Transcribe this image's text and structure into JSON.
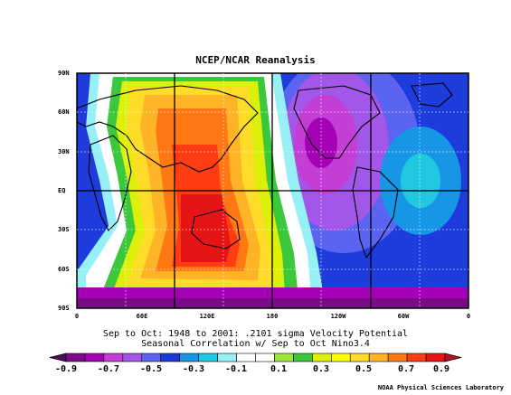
{
  "title": "NCEP/NCAR Reanalysis",
  "y_ticks": [
    "90N",
    "60N",
    "30N",
    "EQ",
    "30S",
    "60S",
    "90S"
  ],
  "x_ticks": [
    "0",
    "60E",
    "120E",
    "180",
    "120W",
    "60W",
    "0"
  ],
  "caption_line1": "Sep to Oct: 1948 to 2001: .2101 sigma Velocity Potential",
  "caption_line2": "Seasonal Correlation w/ Sep to Oct Nino3.4",
  "colorbar": {
    "labels": [
      "-0.9",
      "-0.7",
      "-0.5",
      "-0.3",
      "-0.1",
      "0.1",
      "0.3",
      "0.5",
      "0.7",
      "0.9"
    ],
    "colors": [
      "#7a0a86",
      "#a400b4",
      "#c43ed6",
      "#a257e8",
      "#5a64f0",
      "#1e38d6",
      "#1896e6",
      "#20c8e0",
      "#96f0f5",
      "#ffffff",
      "#ffffff",
      "#a0e63c",
      "#3cc83c",
      "#dcf00a",
      "#ffff00",
      "#ffdc28",
      "#ffb428",
      "#ff7814",
      "#ff3c14",
      "#e61414"
    ],
    "pole_colors": [
      "#500a5a",
      "#b4141e"
    ]
  },
  "credit": "NOAA Physical Sciences Laboratory"
}
